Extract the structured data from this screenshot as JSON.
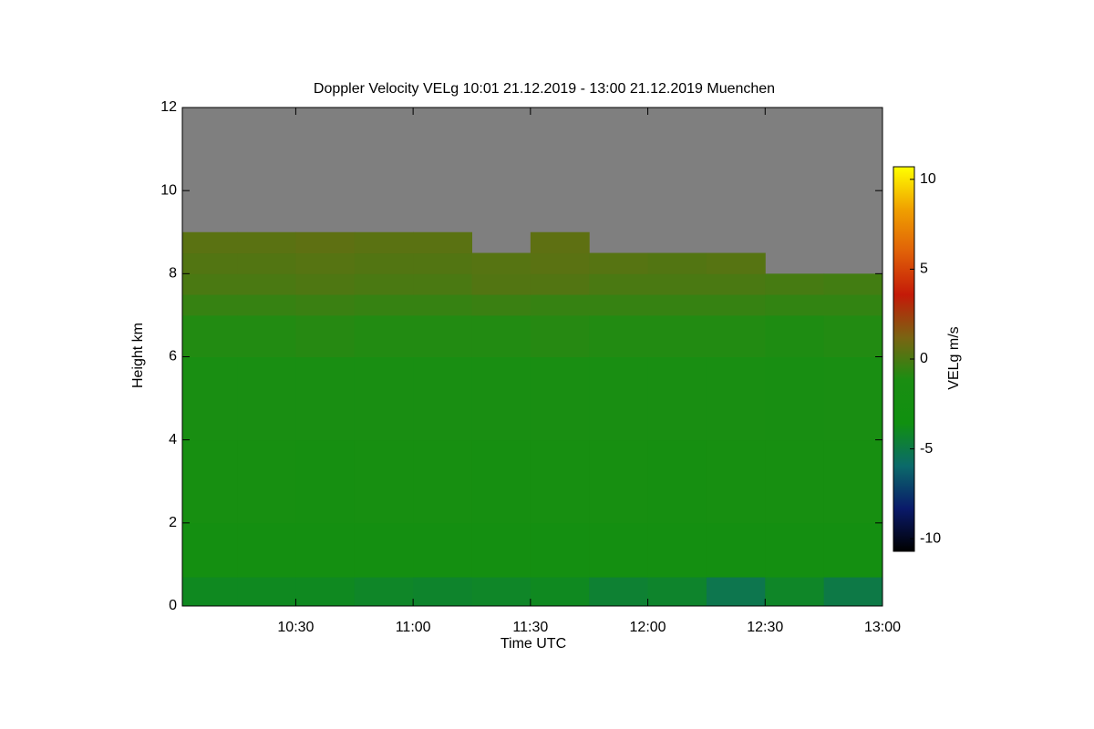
{
  "chart_data": {
    "type": "heatmap",
    "title": "Doppler Velocity VELg   10:01 21.12.2019 - 13:00 21.12.2019 Muenchen",
    "x_label": "Time UTC",
    "y_label": "Height km",
    "colorbar_label": "VELg m/s",
    "xlim": [
      10.0167,
      13.0
    ],
    "xticks": [
      {
        "value": 10.5,
        "label": "10:30"
      },
      {
        "value": 11.0,
        "label": "11:00"
      },
      {
        "value": 11.5,
        "label": "11:30"
      },
      {
        "value": 12.0,
        "label": "12:00"
      },
      {
        "value": 12.5,
        "label": "12:30"
      },
      {
        "value": 13.0,
        "label": "13:00"
      }
    ],
    "ylim": [
      0,
      12
    ],
    "yticks": [
      0,
      2,
      4,
      6,
      8,
      10,
      12
    ],
    "zlim": [
      -10.7,
      10.7
    ],
    "zticks": [
      -10,
      -5,
      0,
      5,
      10
    ],
    "colors": [
      "#000000",
      "#0a1a6a",
      "#0b6a6a",
      "#109010",
      "#1a8e12",
      "#7a6412",
      "#c41a08",
      "#e06008",
      "#f0a000",
      "#ffff00"
    ],
    "missing_color": "#7f7f7f",
    "x_edges": [
      10.0167,
      10.25,
      10.5,
      10.75,
      11.0,
      11.25,
      11.5,
      11.75,
      12.0,
      12.25,
      12.5,
      12.75,
      13.0
    ],
    "y_edges": [
      0,
      0.7,
      2,
      4,
      6,
      7,
      7.5,
      8,
      8.5,
      9
    ],
    "z": [
      [
        -4,
        -4,
        -4,
        -4.2,
        -4.3,
        -4.2,
        -4,
        -4.5,
        -4.3,
        -5.2,
        -4.2,
        -5
      ],
      [
        -2.5,
        -2.5,
        -2.6,
        -2.5,
        -2.5,
        -2.6,
        -2.5,
        -2.5,
        -2.6,
        -2.5,
        -2.5,
        -2.5
      ],
      [
        -2,
        -2,
        -2.1,
        -2,
        -2,
        -2.1,
        -2,
        -2,
        -2.1,
        -2,
        -2,
        -2
      ],
      [
        -1.5,
        -1.4,
        -1.5,
        -1.5,
        -1.4,
        -1.5,
        -1.5,
        -1.4,
        -1.5,
        -1.5,
        -1.6,
        -1.5
      ],
      [
        -1,
        -1,
        -0.9,
        -1,
        -1,
        -1,
        -0.9,
        -1,
        -1,
        -1,
        -1.1,
        -1
      ],
      [
        -0.5,
        -0.5,
        -0.4,
        -0.5,
        -0.5,
        -0.4,
        -0.5,
        -0.5,
        -0.5,
        -0.5,
        -0.6,
        -0.6
      ],
      [
        0,
        0,
        0.1,
        0,
        0,
        0.2,
        0.2,
        0,
        0,
        0,
        -0.1,
        -0.2
      ],
      [
        0.2,
        0.2,
        0.3,
        0.2,
        0.2,
        0.3,
        0.4,
        0.3,
        0.2,
        0.3,
        null,
        null
      ],
      [
        0.4,
        0.4,
        0.5,
        0.4,
        0.4,
        null,
        0.5,
        null,
        null,
        null,
        null,
        null
      ]
    ]
  }
}
